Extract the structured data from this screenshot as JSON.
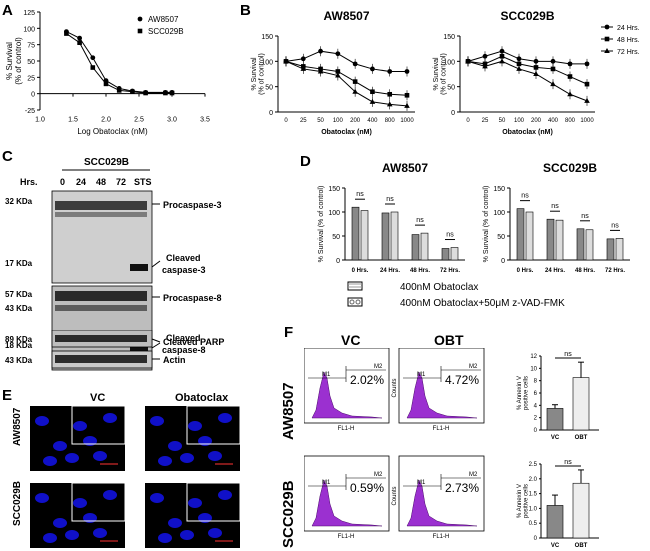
{
  "panels": {
    "A": "A",
    "B": "B",
    "C": "C",
    "D": "D",
    "E": "E",
    "F": "F"
  },
  "chart_data": [
    {
      "id": "A",
      "type": "line",
      "xlabel": "Log Obatoclax (nM)",
      "ylabel": "% Survival\n(% of control)",
      "xlim": [
        1.0,
        3.5
      ],
      "ylim": [
        -25,
        125
      ],
      "xticks": [
        "1.0",
        "1.5",
        "2.0",
        "2.5",
        "3.0",
        "3.5"
      ],
      "yticks": [
        "-25",
        "0",
        "25",
        "50",
        "75",
        "100",
        "125"
      ],
      "legend_position": "top-right",
      "series": [
        {
          "name": "AW8507",
          "marker": "circle",
          "x": [
            1.4,
            1.6,
            1.8,
            2.0,
            2.2,
            2.4,
            2.6,
            2.9,
            3.0
          ],
          "y": [
            95,
            85,
            55,
            20,
            8,
            4,
            2,
            2,
            2
          ]
        },
        {
          "name": "SCC029B",
          "marker": "square",
          "x": [
            1.4,
            1.6,
            1.8,
            2.0,
            2.2,
            2.4,
            2.6,
            2.9,
            3.0
          ],
          "y": [
            92,
            78,
            40,
            15,
            5,
            3,
            1,
            1,
            1
          ]
        }
      ]
    },
    {
      "id": "B1",
      "type": "line",
      "title": "AW8507",
      "xlabel": "Obatoclax (nM)",
      "ylabel": "% Survival\n(% of control)",
      "categories": [
        "0",
        "25",
        "50",
        "100",
        "200",
        "400",
        "800",
        "1000"
      ],
      "ylim": [
        0,
        150
      ],
      "yticks": [
        "0",
        "50",
        "100",
        "150"
      ],
      "series": [
        {
          "name": "24 Hrs.",
          "marker": "circle",
          "values": [
            100,
            105,
            120,
            115,
            95,
            85,
            80,
            80
          ]
        },
        {
          "name": "48 Hrs.",
          "marker": "square",
          "values": [
            100,
            90,
            85,
            80,
            60,
            40,
            35,
            33
          ]
        },
        {
          "name": "72 Hrs.",
          "marker": "triangle",
          "values": [
            100,
            85,
            80,
            72,
            40,
            20,
            15,
            12
          ]
        }
      ]
    },
    {
      "id": "B2",
      "type": "line",
      "title": "SCC029B",
      "xlabel": "Obatoclax (nM)",
      "ylabel": "% Survival\n(% of control)",
      "categories": [
        "0",
        "25",
        "50",
        "100",
        "200",
        "400",
        "800",
        "1000"
      ],
      "ylim": [
        0,
        150
      ],
      "yticks": [
        "0",
        "50",
        "100",
        "150"
      ],
      "legend_position": "top-right",
      "series": [
        {
          "name": "24 Hrs.",
          "marker": "circle",
          "values": [
            100,
            110,
            120,
            105,
            100,
            100,
            95,
            95
          ]
        },
        {
          "name": "48 Hrs.",
          "marker": "square",
          "values": [
            100,
            95,
            110,
            95,
            88,
            85,
            70,
            55
          ]
        },
        {
          "name": "72 Hrs.",
          "marker": "triangle",
          "values": [
            100,
            90,
            100,
            85,
            75,
            55,
            35,
            22
          ]
        }
      ]
    },
    {
      "id": "D1",
      "type": "bar",
      "title": "AW8507",
      "ylabel": "% Survival (% of control)",
      "categories": [
        "0 Hrs.",
        "24 Hrs.",
        "48 Hrs.",
        "72 Hrs."
      ],
      "ylim": [
        0,
        150
      ],
      "yticks": [
        "0",
        "50",
        "100",
        "150"
      ],
      "annotations": [
        "ns",
        "ns",
        "ns",
        "ns"
      ],
      "series": [
        {
          "name": "400nM Obatoclax",
          "values": [
            110,
            98,
            53,
            24
          ]
        },
        {
          "name": "400nM Obatoclax+50μM z-VAD-FMK",
          "values": [
            103,
            100,
            56,
            26
          ]
        }
      ]
    },
    {
      "id": "D2",
      "type": "bar",
      "title": "SCC029B",
      "ylabel": "% Survival (% of control)",
      "categories": [
        "0 Hrs.",
        "24 Hrs.",
        "48 Hrs.",
        "72 Hrs."
      ],
      "ylim": [
        0,
        150
      ],
      "yticks": [
        "0",
        "50",
        "100",
        "150"
      ],
      "annotations": [
        "ns",
        "ns",
        "ns",
        "ns"
      ],
      "series": [
        {
          "name": "400nM Obatoclax",
          "values": [
            107,
            85,
            65,
            44
          ]
        },
        {
          "name": "400nM Obatoclax+50μM z-VAD-FMK",
          "values": [
            100,
            83,
            63,
            45
          ]
        }
      ]
    },
    {
      "id": "F1",
      "type": "bar",
      "ylabel": "% Annexin V\npositive cells",
      "categories": [
        "VC",
        "OBT"
      ],
      "ylim": [
        0,
        12
      ],
      "yticks": [
        "0",
        "2",
        "4",
        "6",
        "8",
        "10",
        "12"
      ],
      "annotation": "ns",
      "values": [
        3.5,
        8.5
      ],
      "errors": [
        0.6,
        2.5
      ]
    },
    {
      "id": "F2",
      "type": "bar",
      "ylabel": "% Annexin V\npositive cells",
      "categories": [
        "VC",
        "OBT"
      ],
      "ylim": [
        0,
        2.5
      ],
      "yticks": [
        "0",
        "0.5",
        "1.0",
        "1.5",
        "2.0",
        "2.5"
      ],
      "annotation": "ns",
      "values": [
        1.1,
        1.85
      ],
      "errors": [
        0.35,
        0.45
      ]
    }
  ],
  "blot": {
    "title": "SCC029B",
    "hrs": "Hrs.",
    "lanes": [
      "0",
      "24",
      "48",
      "72",
      "STS"
    ],
    "kda": [
      "32 KDa",
      "17 KDa",
      "57 KDa",
      "43 KDa",
      "18 KDa",
      "89 KDa",
      "43 KDa"
    ],
    "labels": {
      "procasp3": "Procaspase-3",
      "cleaved3_a": "Cleaved",
      "cleaved3_b": "caspase-3",
      "procasp8": "Procaspase-8",
      "cleaved8_a": "Cleaved",
      "cleaved8_b": "caspase-8",
      "parp": "Cleaved PARP",
      "actin": "Actin"
    }
  },
  "micro": {
    "col1": "VC",
    "col2": "Obatoclax",
    "row1": "AW8507",
    "row2": "SCC029B"
  },
  "flow": {
    "col1": "VC",
    "col2": "OBT",
    "row1": "AW8507",
    "row2": "SCC029B",
    "percents": [
      "2.02%",
      "4.72%",
      "0.59%",
      "2.73%"
    ],
    "m1": "M1",
    "m2": "M2",
    "xlabel": "FL1-H",
    "ylabel": "Counts"
  },
  "colors": {
    "purple": "#9b30d0",
    "blue": "#1010c8"
  }
}
